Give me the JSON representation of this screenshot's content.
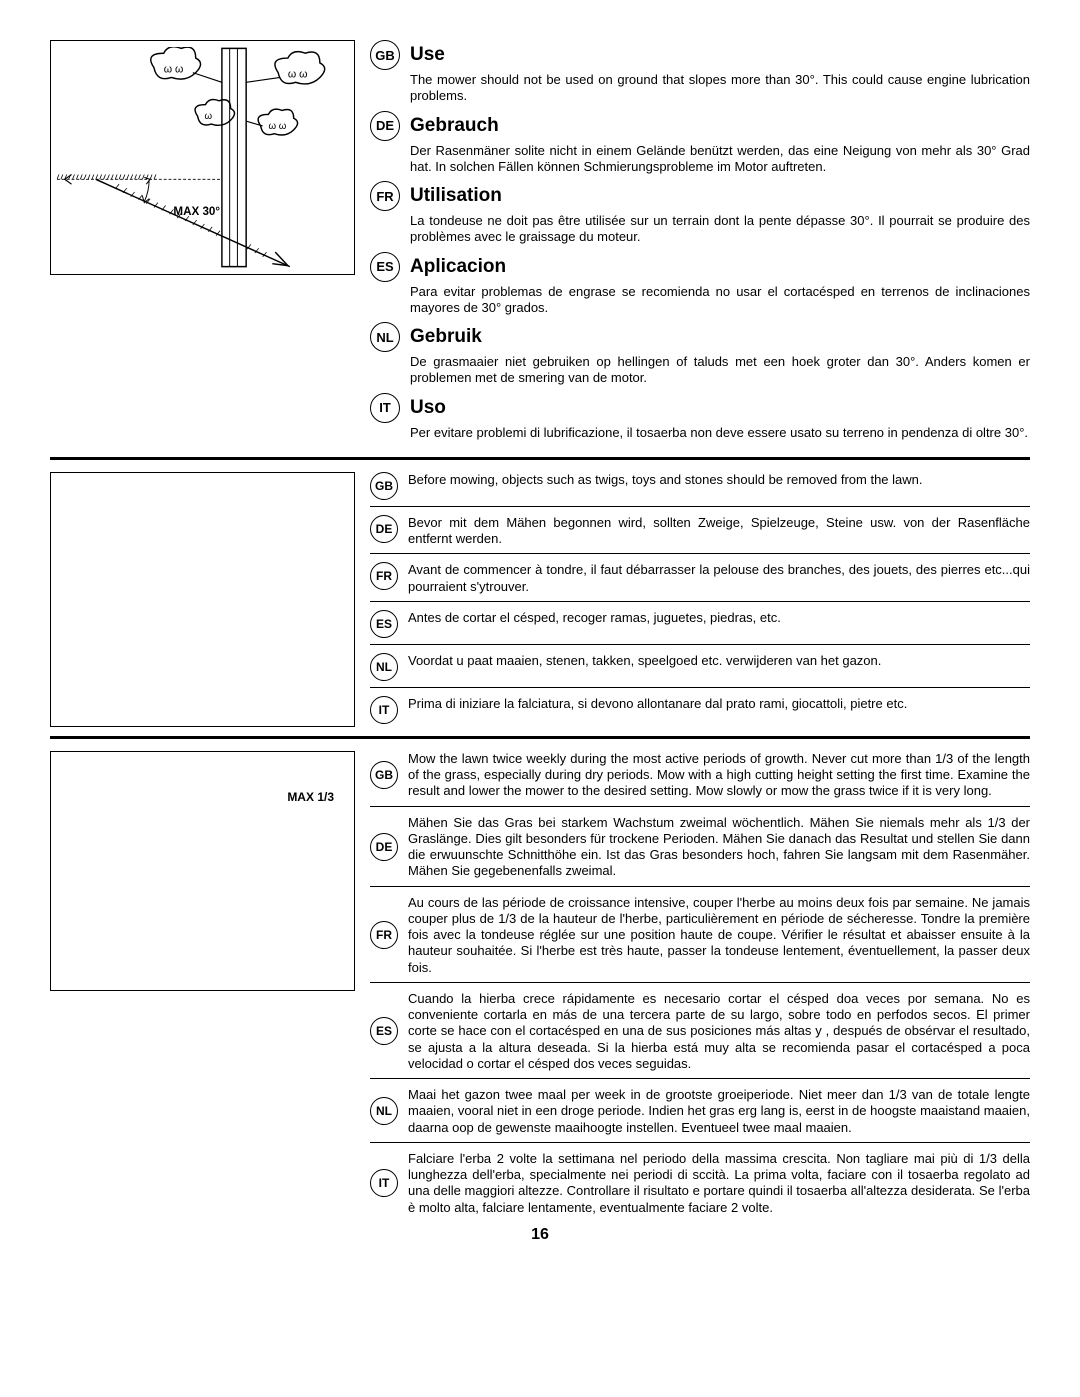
{
  "illustration": {
    "max_label": "MAX 30°"
  },
  "section1": [
    {
      "code": "GB",
      "heading": "Use",
      "body": "The mower should not be used on ground that slopes more than 30°. This could cause engine lubrication problems."
    },
    {
      "code": "DE",
      "heading": "Gebrauch",
      "body": "Der Rasenmäner solite nicht in einem Gelände benützt werden, das eine Neigung von mehr als 30° Grad hat. In solchen Fällen können Schmierungsprobleme im Motor auftreten."
    },
    {
      "code": "FR",
      "heading": "Utilisation",
      "body": "La tondeuse ne doit pas être utilisée sur un terrain dont la pente dépasse 30°. Il pourrait se produire des problèmes avec le graissage du moteur."
    },
    {
      "code": "ES",
      "heading": "Aplicacion",
      "body": "Para evitar problemas de engrase se recomienda no usar el cortacésped en terrenos de inclinaciones mayores de 30° grados."
    },
    {
      "code": "NL",
      "heading": "Gebruik",
      "body": "De grasmaaier niet gebruiken op hellingen of taluds met een hoek groter dan 30°. Anders komen er problemen met de smering van de motor."
    },
    {
      "code": "IT",
      "heading": "Uso",
      "body": "Per evitare problemi di lubrificazione, il tosaerba non deve essere usato su terreno in pendenza di oltre 30°."
    }
  ],
  "section2": [
    {
      "code": "GB",
      "body": "Before mowing, objects such as twigs, toys and stones should be removed from the lawn."
    },
    {
      "code": "DE",
      "body": "Bevor mit dem Mähen begonnen wird, sollten Zweige, Spielzeuge, Steine usw. von der Rasenfläche entfernt werden."
    },
    {
      "code": "FR",
      "body": "Avant de commencer à tondre, il faut débarrasser la pelouse des branches, des jouets, des pierres etc...qui pourraient s'ytrouver."
    },
    {
      "code": "ES",
      "body": "Antes de cortar el césped, recoger ramas, juguetes, piedras, etc."
    },
    {
      "code": "NL",
      "body": "Voordat u paat maaien, stenen, takken, speelgoed etc. verwijderen van het gazon."
    },
    {
      "code": "IT",
      "body": "Prima di iniziare la falciatura, si devono allontanare dal prato rami, giocattoli, pietre etc."
    }
  ],
  "section3_box": "MAX 1/3",
  "section3": [
    {
      "code": "GB",
      "body": "Mow the lawn twice weekly during the most active periods of growth. Never cut more than 1/3 of the length of the grass, especially during dry periods. Mow with a high cutting height setting the first time. Examine the result and lower the mower to the desired setting. Mow slowly or mow the grass twice if it is very long."
    },
    {
      "code": "DE",
      "body": "Mähen Sie das Gras bei starkem Wachstum zweimal wöchentlich. Mähen Sie niemals mehr als 1/3 der Graslänge. Dies gilt besonders für trockene Perioden. Mähen Sie danach das Resultat und stellen Sie dann die erwuunschte Schnitthöhe ein. Ist das Gras besonders hoch, fahren Sie langsam mit dem Rasenmäher. Mähen Sie gegebenenfalls zweimal."
    },
    {
      "code": "FR",
      "body": "Au cours de las période de croissance intensive, couper l'herbe au moins deux fois par semaine. Ne jamais couper plus de 1/3 de la hauteur de l'herbe, particulièrement en période de sécheresse. Tondre la première fois avec la tondeuse réglée sur une position haute de coupe. Vérifier le résultat et abaisser ensuite à la hauteur souhaitée. Si l'herbe est très haute, passer la tondeuse lentement, éventuellement, la passer deux fois."
    },
    {
      "code": "ES",
      "body": "Cuando la hierba crece rápidamente es necesario cortar el césped doa veces por semana. No es conveniente cortarla en más de una tercera parte de su largo, sobre todo en perfodos secos. El primer corte se hace con el cortacésped en una de sus posiciones más altas y , después de obsérvar el resultado, se ajusta a la altura deseada. Si la hierba está muy alta se recomienda pasar el cortacésped a poca velocidad o cortar el césped dos veces seguidas."
    },
    {
      "code": "NL",
      "body": "Maai het gazon twee maal per week in de grootste groeiperiode. Niet meer dan 1/3 van de totale lengte maaien, vooral niet in een droge periode. Indien het gras erg lang is, eerst in de hoogste maaistand maaien, daarna oop de gewenste maaihoogte instellen. Eventueel twee maal maaien."
    },
    {
      "code": "IT",
      "body": "Falciare l'erba 2 volte la settimana nel periodo della massima crescita. Non tagliare mai più di 1/3 della lunghezza dell'erba, specialmente nei periodi di sccità. La prima volta, faciare con il tosaerba regolato ad una delle maggiori altezze. Controllare il risultato e portare quindi il tosaerba all'altezza desiderata. Se l'erba è molto alta, falciare lentamente, eventualmente faciare 2 volte."
    }
  ],
  "page_number": "16"
}
